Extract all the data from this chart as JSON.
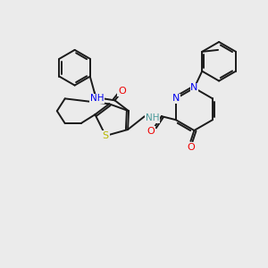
{
  "background_color": "#ebebeb",
  "bond_color": "#1a1a1a",
  "atom_colors": {
    "N": "#0000ee",
    "O": "#ee0000",
    "S": "#b8b800",
    "H": "#4a9a9a",
    "C": "#1a1a1a"
  },
  "figsize": [
    3.0,
    3.0
  ],
  "dpi": 100
}
